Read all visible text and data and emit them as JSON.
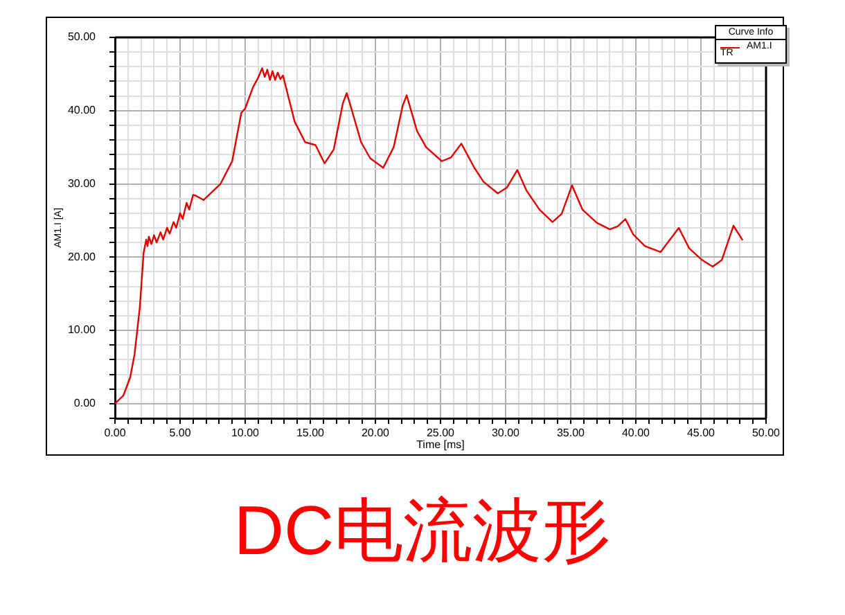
{
  "chart_data": {
    "type": "line",
    "title": "DC电流波形",
    "xlabel": "Time [ms]",
    "ylabel": "AM1.I [A]",
    "legend_title": "Curve Info",
    "legend": "top right",
    "grid": true,
    "marker": "none",
    "line_style": "solid",
    "annotations": [
      "TR"
    ],
    "xlim": [
      0,
      50
    ],
    "ylim": [
      -2,
      50
    ],
    "xticks": [
      {
        "value": 0,
        "label": "0.00"
      },
      {
        "value": 1,
        "label": null
      },
      {
        "value": 2,
        "label": null
      },
      {
        "value": 3,
        "label": null
      },
      {
        "value": 4,
        "label": null
      },
      {
        "value": 5,
        "label": "5.00"
      },
      {
        "value": 6,
        "label": null
      },
      {
        "value": 7,
        "label": null
      },
      {
        "value": 8,
        "label": null
      },
      {
        "value": 9,
        "label": null
      },
      {
        "value": 10,
        "label": "10.00"
      },
      {
        "value": 11,
        "label": null
      },
      {
        "value": 12,
        "label": null
      },
      {
        "value": 13,
        "label": null
      },
      {
        "value": 14,
        "label": null
      },
      {
        "value": 15,
        "label": "15.00"
      },
      {
        "value": 16,
        "label": null
      },
      {
        "value": 17,
        "label": null
      },
      {
        "value": 18,
        "label": null
      },
      {
        "value": 19,
        "label": null
      },
      {
        "value": 20,
        "label": "20.00"
      },
      {
        "value": 21,
        "label": null
      },
      {
        "value": 22,
        "label": null
      },
      {
        "value": 23,
        "label": null
      },
      {
        "value": 24,
        "label": null
      },
      {
        "value": 25,
        "label": "25.00"
      },
      {
        "value": 26,
        "label": null
      },
      {
        "value": 27,
        "label": null
      },
      {
        "value": 28,
        "label": null
      },
      {
        "value": 29,
        "label": null
      },
      {
        "value": 30,
        "label": "30.00"
      },
      {
        "value": 31,
        "label": null
      },
      {
        "value": 32,
        "label": null
      },
      {
        "value": 33,
        "label": null
      },
      {
        "value": 34,
        "label": null
      },
      {
        "value": 35,
        "label": "35.00"
      },
      {
        "value": 36,
        "label": null
      },
      {
        "value": 37,
        "label": null
      },
      {
        "value": 38,
        "label": null
      },
      {
        "value": 39,
        "label": null
      },
      {
        "value": 40,
        "label": "40.00"
      },
      {
        "value": 41,
        "label": null
      },
      {
        "value": 42,
        "label": null
      },
      {
        "value": 43,
        "label": null
      },
      {
        "value": 44,
        "label": null
      },
      {
        "value": 45,
        "label": "45.00"
      },
      {
        "value": 46,
        "label": null
      },
      {
        "value": 47,
        "label": null
      },
      {
        "value": 48,
        "label": null
      },
      {
        "value": 49,
        "label": null
      },
      {
        "value": 50,
        "label": "50.00"
      }
    ],
    "yticks": [
      {
        "value": -2,
        "label": null
      },
      {
        "value": 0,
        "label": "0.00"
      },
      {
        "value": 2,
        "label": null
      },
      {
        "value": 4,
        "label": null
      },
      {
        "value": 6,
        "label": null
      },
      {
        "value": 8,
        "label": null
      },
      {
        "value": 10,
        "label": "10.00"
      },
      {
        "value": 12,
        "label": null
      },
      {
        "value": 14,
        "label": null
      },
      {
        "value": 16,
        "label": null
      },
      {
        "value": 18,
        "label": null
      },
      {
        "value": 20,
        "label": "20.00"
      },
      {
        "value": 22,
        "label": null
      },
      {
        "value": 24,
        "label": null
      },
      {
        "value": 26,
        "label": null
      },
      {
        "value": 28,
        "label": null
      },
      {
        "value": 30,
        "label": "30.00"
      },
      {
        "value": 32,
        "label": null
      },
      {
        "value": 34,
        "label": null
      },
      {
        "value": 36,
        "label": null
      },
      {
        "value": 38,
        "label": null
      },
      {
        "value": 40,
        "label": "40.00"
      },
      {
        "value": 42,
        "label": null
      },
      {
        "value": 44,
        "label": null
      },
      {
        "value": 46,
        "label": null
      },
      {
        "value": 48,
        "label": null
      },
      {
        "value": 50,
        "label": "50.00"
      }
    ],
    "series": [
      {
        "name": "AM1.I",
        "color": "#e00000",
        "x": [
          0,
          0.64,
          1.17,
          1.5,
          1.9,
          2.2,
          2.4,
          2.5,
          2.6,
          2.8,
          3.0,
          3.2,
          3.5,
          3.7,
          4.0,
          4.2,
          4.5,
          4.7,
          5.0,
          5.2,
          5.5,
          5.7,
          6.0,
          6.2,
          6.8,
          8.1,
          9.0,
          9.7,
          10.0,
          10.6,
          11.0,
          11.3,
          11.5,
          11.7,
          11.9,
          12.1,
          12.3,
          12.5,
          12.7,
          12.9,
          13.8,
          14.6,
          15.4,
          16.1,
          16.8,
          17.5,
          17.8,
          18.2,
          18.9,
          19.6,
          20.6,
          21.4,
          22.1,
          22.4,
          23.2,
          23.9,
          25.1,
          25.8,
          26.6,
          27.6,
          28.3,
          29.4,
          30.1,
          30.9,
          31.6,
          32.6,
          33.6,
          34.3,
          35.1,
          35.9,
          37.0,
          38.0,
          38.6,
          39.2,
          39.8,
          40.7,
          41.9,
          43.3,
          44.1,
          45.1,
          45.9,
          46.6,
          47.5,
          48.2
        ],
        "values": [
          0,
          1.1,
          3.6,
          6.7,
          13,
          20.6,
          22.4,
          21.5,
          22.8,
          21.8,
          23,
          22,
          23.4,
          22.4,
          24,
          23.2,
          24.8,
          24,
          26,
          25.2,
          27.4,
          26.5,
          28.5,
          28.4,
          27.8,
          30,
          33.1,
          39.7,
          40.3,
          43.2,
          44.5,
          45.8,
          44.6,
          45.6,
          44.2,
          45.4,
          44.2,
          45.2,
          44.3,
          44.8,
          38.5,
          35.7,
          35.3,
          32.8,
          34.7,
          41,
          42.4,
          40,
          35.7,
          33.5,
          32.2,
          35,
          40.7,
          42.1,
          37.2,
          35,
          33.1,
          33.6,
          35.5,
          32.2,
          30.3,
          28.7,
          29.5,
          31.9,
          29.1,
          26.5,
          24.8,
          25.9,
          29.8,
          26.5,
          24.7,
          23.8,
          24.2,
          25.2,
          23.1,
          21.5,
          20.7,
          24,
          21.2,
          19.6,
          18.7,
          19.6,
          24.3,
          22.3
        ]
      }
    ]
  }
}
